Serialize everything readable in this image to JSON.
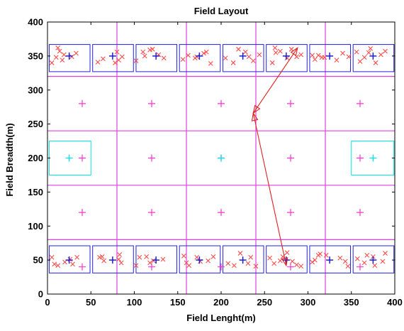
{
  "chart_data": {
    "type": "scatter",
    "title": "Field Layout",
    "xlabel": "Field Lenght(m)",
    "ylabel": "Field Breadth(m)",
    "xlim": [
      0,
      400
    ],
    "ylim": [
      0,
      400
    ],
    "xticks": [
      "0",
      "50",
      "100",
      "150",
      "200",
      "250",
      "300",
      "350",
      "400"
    ],
    "yticks": [
      "0",
      "50",
      "100",
      "150",
      "200",
      "250",
      "300",
      "350",
      "400"
    ],
    "grid": false,
    "colors": {
      "grid_lines": "#e040e0",
      "cluster_boxes": "#2222dd",
      "cluster_heads": "#1f1fd0",
      "sensor_nodes": "#ff4a4a",
      "relay_nodes": "#ff33cc",
      "base_station": "#00e5e5",
      "route": "#e02020"
    },
    "region_lines": {
      "x": [
        80,
        160,
        240,
        320
      ],
      "y": [
        80,
        160,
        240,
        320
      ]
    },
    "cluster_boxes": [
      {
        "x0": 2,
        "x1": 49,
        "y0": 31,
        "y1": 71
      },
      {
        "x0": 52,
        "x1": 99,
        "y0": 31,
        "y1": 71
      },
      {
        "x0": 102,
        "x1": 149,
        "y0": 31,
        "y1": 71
      },
      {
        "x0": 152,
        "x1": 199,
        "y0": 31,
        "y1": 71
      },
      {
        "x0": 202,
        "x1": 249,
        "y0": 31,
        "y1": 71
      },
      {
        "x0": 252,
        "x1": 299,
        "y0": 31,
        "y1": 71
      },
      {
        "x0": 302,
        "x1": 349,
        "y0": 31,
        "y1": 71
      },
      {
        "x0": 352,
        "x1": 399,
        "y0": 31,
        "y1": 71
      },
      {
        "x0": 2,
        "x1": 49,
        "y0": 327,
        "y1": 367
      },
      {
        "x0": 52,
        "x1": 99,
        "y0": 327,
        "y1": 367
      },
      {
        "x0": 102,
        "x1": 149,
        "y0": 327,
        "y1": 367
      },
      {
        "x0": 152,
        "x1": 199,
        "y0": 327,
        "y1": 367
      },
      {
        "x0": 202,
        "x1": 249,
        "y0": 327,
        "y1": 367
      },
      {
        "x0": 252,
        "x1": 299,
        "y0": 327,
        "y1": 367
      },
      {
        "x0": 302,
        "x1": 349,
        "y0": 327,
        "y1": 367
      },
      {
        "x0": 352,
        "x1": 399,
        "y0": 327,
        "y1": 367
      }
    ],
    "base_station_boxes": [
      {
        "x0": 2,
        "x1": 50,
        "y0": 175,
        "y1": 225
      },
      {
        "x0": 350,
        "x1": 399,
        "y0": 175,
        "y1": 225
      }
    ],
    "series": [
      {
        "marker": "+",
        "x": [
          25,
          75,
          125,
          175,
          225,
          275,
          325,
          375,
          25,
          75,
          125,
          175,
          225,
          275,
          325,
          375
        ],
        "y": [
          50,
          50,
          50,
          50,
          50,
          50,
          50,
          50,
          350,
          350,
          350,
          350,
          350,
          350,
          350,
          350
        ]
      },
      {
        "marker": "+",
        "x": [
          40,
          120,
          200,
          280,
          360,
          40,
          120,
          200,
          280,
          360,
          40,
          120,
          200,
          280,
          360,
          40,
          120,
          200,
          280,
          360
        ],
        "y": [
          40,
          40,
          40,
          40,
          40,
          120,
          120,
          120,
          120,
          120,
          200,
          200,
          200,
          200,
          200,
          280,
          280,
          280,
          280,
          280
        ]
      },
      {
        "marker": "+",
        "x": [
          25,
          375,
          200
        ],
        "y": [
          200,
          200,
          200
        ]
      },
      {
        "marker": "x",
        "x": [
          5,
          10,
          14,
          19,
          28,
          33,
          17,
          12,
          58,
          64,
          82,
          86,
          80,
          78,
          102,
          110,
          118,
          121,
          128,
          134,
          112,
          156,
          162,
          170,
          180,
          183,
          188,
          172,
          205,
          214,
          220,
          228,
          232,
          237,
          244,
          259,
          263,
          268,
          276,
          281,
          287,
          292,
          262,
          305,
          308,
          312,
          319,
          333,
          340,
          347,
          316,
          356,
          360,
          365,
          370,
          378,
          384,
          389,
          372,
          5,
          8,
          12,
          20,
          26,
          29,
          34,
          60,
          63,
          65,
          83,
          85,
          82,
          102,
          106,
          114,
          122,
          133,
          118,
          157,
          160,
          163,
          172,
          176,
          191,
          185,
          208,
          215,
          222,
          231,
          234,
          240,
          256,
          261,
          268,
          276,
          282,
          287,
          292,
          271,
          305,
          308,
          314,
          321,
          337,
          343,
          346,
          312,
          357,
          365,
          368,
          377,
          386,
          389,
          375
        ],
        "y": [
          340,
          348,
          357,
          352,
          349,
          354,
          344,
          362,
          341,
          346,
          344,
          349,
          356,
          340,
          343,
          356,
          359,
          360,
          352,
          347,
          350,
          345,
          351,
          347,
          354,
          356,
          339,
          349,
          347,
          340,
          360,
          356,
          349,
          343,
          352,
          340,
          355,
          357,
          347,
          360,
          349,
          352,
          362,
          351,
          345,
          351,
          348,
          344,
          354,
          349,
          348,
          356,
          342,
          348,
          355,
          340,
          352,
          357,
          361,
          54,
          44,
          42,
          47,
          51,
          44,
          54,
          54,
          55,
          49,
          58,
          46,
          51,
          42,
          54,
          55,
          49,
          51,
          46,
          56,
          46,
          42,
          54,
          48,
          55,
          49,
          45,
          42,
          60,
          45,
          54,
          41,
          53,
          45,
          49,
          61,
          48,
          43,
          41,
          55,
          47,
          50,
          59,
          57,
          53,
          48,
          41,
          57,
          52,
          46,
          57,
          42,
          48,
          60,
          55
        ]
      },
      {
        "marker": "arrow-route",
        "x": [
          288,
          237,
          275
        ],
        "y": [
          362,
          266,
          42
        ]
      }
    ]
  }
}
